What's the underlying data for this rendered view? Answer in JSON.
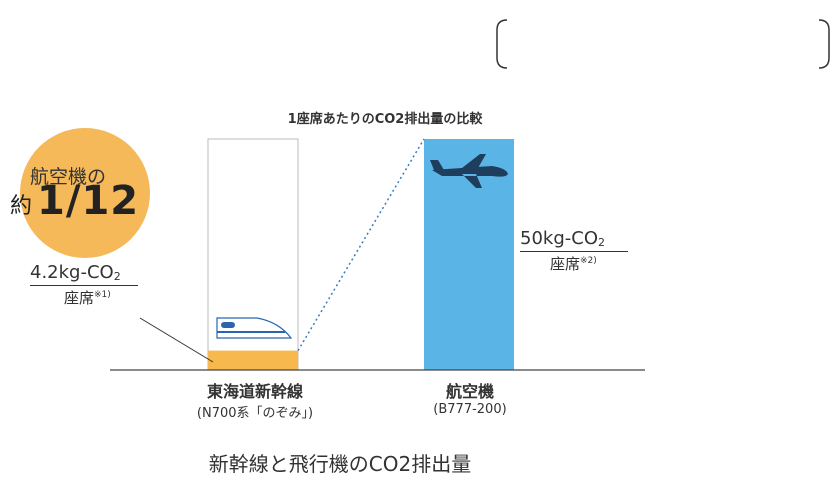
{
  "chart_data": {
    "type": "bar",
    "title": "1座席あたりのCO2排出量の比較",
    "categories": [
      {
        "name": "東海道新幹線",
        "sub": "(N700系「のぞみ」)"
      },
      {
        "name": "航空機",
        "sub": "(B777-200)"
      }
    ],
    "values": [
      4.2,
      50
    ],
    "unit_numerator": "kg-CO",
    "unit_subscript": "2",
    "unit_denominator": "座席",
    "value_labels": [
      {
        "numerator": "4.2kg-CO",
        "subscript": "2",
        "denominator": "座席",
        "note": "※1)"
      },
      {
        "numerator": "50kg-CO",
        "subscript": "2",
        "denominator": "座席",
        "note": "※2)"
      }
    ],
    "ylim": [
      0,
      50
    ],
    "grid": false,
    "legend": "none",
    "colors": {
      "shinkansen": "#f7b84e",
      "airplane": "#5ab4e5",
      "badge": "#f5b95a",
      "outline": "#bbbbbb",
      "dotted": "#3a7bbf"
    },
    "icons": [
      "shinkansen-train-icon",
      "airplane-icon"
    ],
    "badge": {
      "line1": "航空機の",
      "prefix": "約",
      "big": "1/12"
    }
  },
  "caption": "新幹線と飛行機のCO2排出量"
}
